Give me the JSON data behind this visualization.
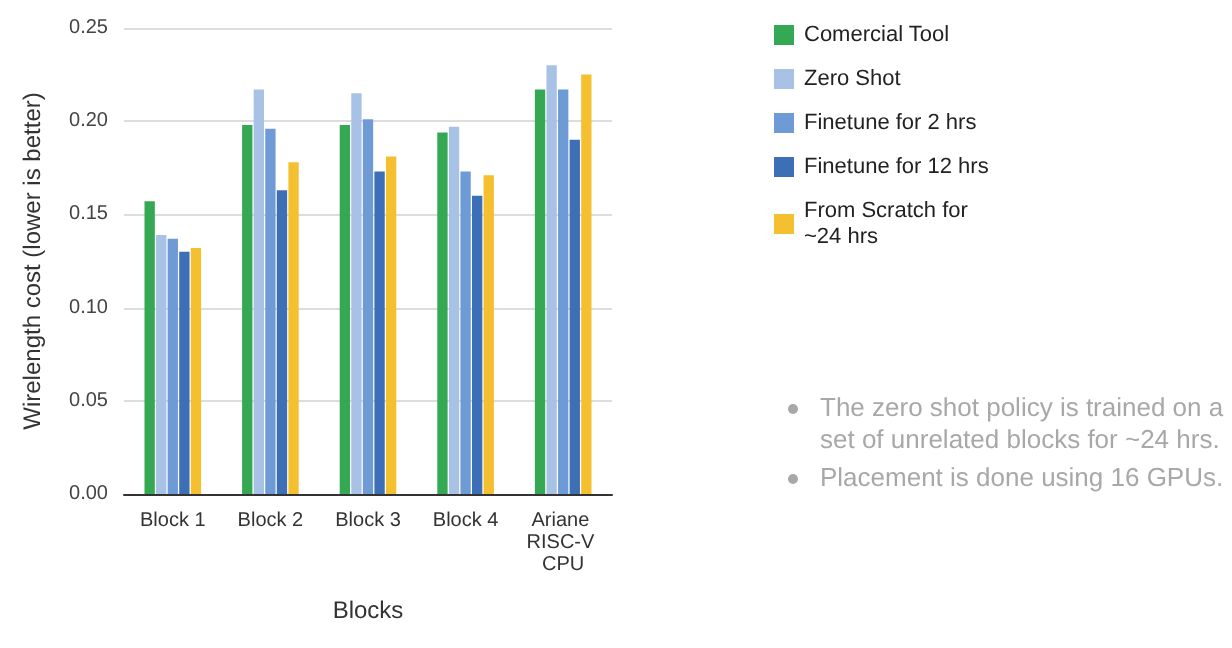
{
  "chart_data": {
    "type": "bar",
    "xlabel": "Blocks",
    "ylabel": "Wirelength cost (lower is better)",
    "categories": [
      "Block 1",
      "Block 2",
      "Block 3",
      "Block 4",
      "Ariane RISC-V CPU"
    ],
    "series": [
      {
        "name": "Comercial Tool",
        "color": "#34a853",
        "values": [
          0.157,
          0.198,
          0.198,
          0.194,
          0.217
        ]
      },
      {
        "name": "Zero Shot",
        "color": "#a8c2e6",
        "values": [
          0.139,
          0.217,
          0.215,
          0.197,
          0.23
        ]
      },
      {
        "name": "Finetune for 2 hrs",
        "color": "#6e9bd6",
        "values": [
          0.137,
          0.196,
          0.201,
          0.173,
          0.217
        ]
      },
      {
        "name": "Finetune for 12 hrs",
        "color": "#3c6fb5",
        "values": [
          0.13,
          0.163,
          0.173,
          0.16,
          0.19
        ]
      },
      {
        "name": "From Scratch for ~24 hrs",
        "color": "#f4c030",
        "values": [
          0.132,
          0.178,
          0.181,
          0.171,
          0.225
        ]
      }
    ],
    "ylim": [
      0,
      0.25
    ],
    "yticks": [
      {
        "value": 0,
        "label": "0.00"
      },
      {
        "value": 0.05,
        "label": "0.05"
      },
      {
        "value": 0.1,
        "label": "0.10"
      },
      {
        "value": 0.15,
        "label": "0.15"
      },
      {
        "value": 0.2,
        "label": "0.20"
      },
      {
        "value": 0.25,
        "label": "0.25"
      }
    ],
    "grid": "y",
    "legend": "right",
    "annotations": [
      "The zero shot policy is trained on a set of unrelated blocks for ~24 hrs.",
      "Placement is done using 16 GPUs."
    ]
  }
}
